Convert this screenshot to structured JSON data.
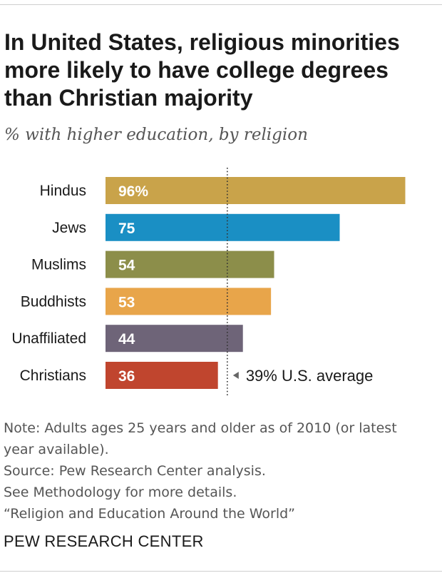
{
  "title_lines": [
    "In United States, religious minorities",
    "more likely to have college degrees",
    "than Christian majority"
  ],
  "subtitle": "% with higher education, by religion",
  "chart_data": {
    "type": "bar",
    "orientation": "horizontal",
    "title": "In United States, religious minorities more likely to have college degrees than Christian majority",
    "subtitle": "% with higher education, by religion",
    "xlabel": "",
    "ylabel": "",
    "xlim": [
      0,
      100
    ],
    "categories": [
      "Hindus",
      "Jews",
      "Muslims",
      "Buddhists",
      "Unaffiliated",
      "Christians"
    ],
    "values": [
      96,
      75,
      54,
      53,
      44,
      36
    ],
    "value_labels": [
      "96%",
      "75",
      "54",
      "53",
      "44",
      "36"
    ],
    "colors": [
      "#c9a34a",
      "#1a8fc4",
      "#8c8e4a",
      "#e8a54a",
      "#6e6478",
      "#c0452e"
    ],
    "reference_line": {
      "value": 39,
      "label": "39% U.S. average",
      "style": "dotted"
    }
  },
  "notes": [
    "Note: Adults ages 25 years and older as of 2010 (or latest",
    "year available).",
    "Source: Pew Research Center analysis.",
    "See Methodology for more details.",
    "“Religion and Education Around the World”"
  ],
  "footer": "PEW RESEARCH CENTER"
}
